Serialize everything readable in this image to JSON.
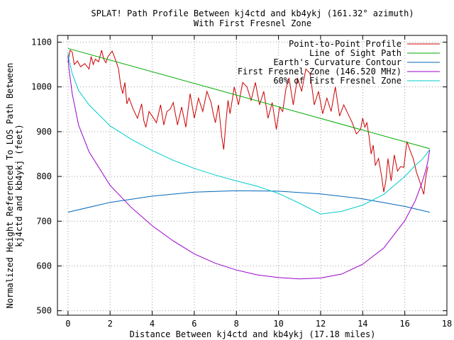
{
  "chart_data": {
    "type": "line",
    "title": "SPLAT! Path Profile Between kj4ctd and kb4ykj (161.32° azimuth)",
    "subtitle": "With First Fresnel Zone",
    "xlabel": "Distance Between kj4ctd and kb4ykj (17.18 miles)",
    "ylabel_line1": "Normalized Height Referenced To LOS Path Between",
    "ylabel_line2": "kj4ctd and kb4ykj (feet)",
    "xlim": [
      -0.5,
      18
    ],
    "ylim": [
      490,
      1115
    ],
    "x_ticks": [
      0,
      2,
      4,
      6,
      8,
      10,
      12,
      14,
      16,
      18
    ],
    "y_ticks": [
      500,
      600,
      700,
      800,
      900,
      1000,
      1100
    ],
    "grid": true,
    "legend_position": "top-right",
    "series": [
      {
        "name": "Point-to-Point Profile",
        "color": "#cc0000",
        "x": [
          0,
          0.1,
          0.2,
          0.3,
          0.45,
          0.6,
          0.8,
          1.0,
          1.1,
          1.2,
          1.3,
          1.45,
          1.6,
          1.7,
          1.8,
          1.9,
          2.1,
          2.3,
          2.4,
          2.5,
          2.6,
          2.7,
          2.8,
          2.9,
          3.1,
          3.3,
          3.5,
          3.6,
          3.7,
          3.85,
          4.0,
          4.2,
          4.4,
          4.55,
          4.7,
          4.85,
          5.0,
          5.2,
          5.4,
          5.6,
          5.8,
          6.0,
          6.2,
          6.4,
          6.6,
          6.8,
          6.9,
          7.0,
          7.15,
          7.3,
          7.4,
          7.5,
          7.6,
          7.7,
          7.9,
          8.1,
          8.3,
          8.5,
          8.7,
          8.9,
          9.1,
          9.3,
          9.5,
          9.7,
          9.9,
          10.05,
          10.2,
          10.35,
          10.5,
          10.7,
          10.9,
          11.1,
          11.3,
          11.5,
          11.7,
          11.9,
          12.1,
          12.3,
          12.5,
          12.7,
          12.9,
          13.1,
          13.3,
          13.5,
          13.7,
          13.9,
          14.0,
          14.1,
          14.2,
          14.3,
          14.4,
          14.5,
          14.6,
          14.75,
          14.9,
          15.0,
          15.1,
          15.2,
          15.35,
          15.5,
          15.65,
          15.8,
          15.95,
          16.1,
          16.25,
          16.4,
          16.55,
          16.7,
          16.8,
          16.9,
          17.0,
          17.1
        ],
        "values": [
          1055,
          1082,
          1078,
          1050,
          1058,
          1045,
          1052,
          1040,
          1068,
          1050,
          1062,
          1056,
          1082,
          1062,
          1054,
          1068,
          1080,
          1055,
          1040,
          1005,
          985,
          1010,
          962,
          975,
          950,
          930,
          962,
          925,
          910,
          945,
          935,
          920,
          960,
          915,
          945,
          950,
          965,
          915,
          955,
          910,
          985,
          930,
          975,
          945,
          990,
          965,
          940,
          920,
          960,
          890,
          860,
          920,
          970,
          940,
          1000,
          960,
          1010,
          1000,
          970,
          1010,
          960,
          990,
          930,
          965,
          905,
          955,
          945,
          995,
          1020,
          960,
          1020,
          990,
          1040,
          1030,
          960,
          990,
          940,
          975,
          945,
          1000,
          935,
          960,
          940,
          920,
          895,
          905,
          930,
          910,
          920,
          890,
          850,
          870,
          825,
          840,
          800,
          765,
          790,
          840,
          790,
          848,
          812,
          822,
          820,
          878,
          858,
          840,
          810,
          790,
          775,
          760,
          800,
          822
        ]
      },
      {
        "name": "Line of Sight Path",
        "color": "#00aa00",
        "x": [
          0,
          17.18
        ],
        "values": [
          1086,
          862
        ]
      },
      {
        "name": "Earth's Curvature Contour",
        "color": "#0066bb",
        "x": [
          0,
          2,
          4,
          6,
          8,
          10,
          12,
          14,
          16,
          17.18
        ],
        "values": [
          720,
          742,
          756,
          765,
          768,
          767,
          761,
          750,
          733,
          720
        ]
      },
      {
        "name": "First Fresnel Zone (146.520 MHz)",
        "color": "#9900cc",
        "x": [
          0,
          0.05,
          0.2,
          0.5,
          1.0,
          2.0,
          3.0,
          4.0,
          5.0,
          6.0,
          7.0,
          8.0,
          9.0,
          10.0,
          11.0,
          12.0,
          13.0,
          14.0,
          15.0,
          16.0,
          16.5,
          16.8,
          17.0,
          17.1,
          17.18
        ],
        "values": [
          1070,
          1040,
          985,
          915,
          855,
          780,
          731,
          690,
          656,
          627,
          606,
          591,
          580,
          574,
          571,
          573,
          582,
          604,
          640,
          701,
          746,
          784,
          814,
          835,
          860
        ]
      },
      {
        "name": "60% of First Fresnel Zone",
        "color": "#00cccc",
        "x": [
          0,
          0.05,
          0.2,
          0.5,
          1.0,
          2.0,
          3.0,
          4.0,
          5.0,
          6.0,
          7.0,
          8.0,
          9.0,
          10.0,
          11.0,
          12.0,
          13.0,
          14.0,
          15.0,
          16.0,
          16.5,
          16.8,
          17.0,
          17.1,
          17.18
        ],
        "values": [
          1077,
          1060,
          1030,
          992,
          960,
          913,
          883,
          858,
          836,
          818,
          803,
          790,
          778,
          762,
          740,
          716,
          722,
          736,
          760,
          800,
          825,
          837,
          848,
          855,
          860
        ]
      }
    ]
  }
}
